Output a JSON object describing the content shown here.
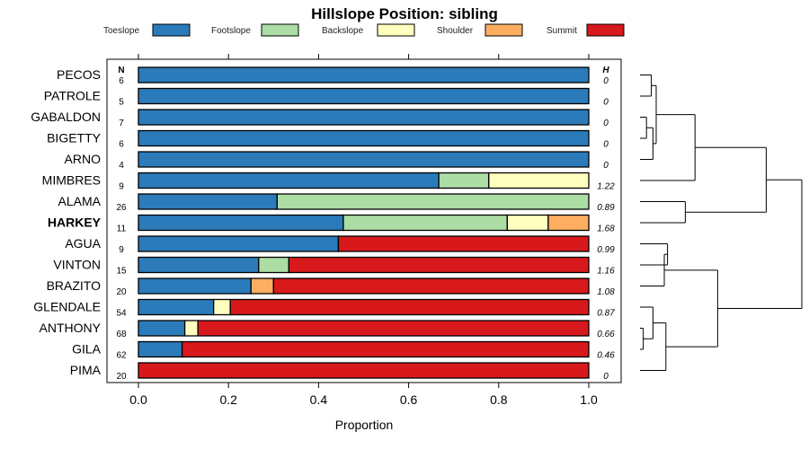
{
  "chart_data": {
    "type": "stacked-bar",
    "title": "Hillslope Position: sibling",
    "xlabel": "Proportion",
    "xlim": [
      0,
      1
    ],
    "xticks": [
      "0.0",
      "0.2",
      "0.4",
      "0.6",
      "0.8",
      "1.0"
    ],
    "n_header": "N",
    "h_header": "H",
    "bold_category": "HARKEY",
    "classes": [
      {
        "name": "Toeslope",
        "color": "#2b7bba"
      },
      {
        "name": "Footslope",
        "color": "#abdda4"
      },
      {
        "name": "Backslope",
        "color": "#ffffbf"
      },
      {
        "name": "Shoulder",
        "color": "#fdae61"
      },
      {
        "name": "Summit",
        "color": "#d7191c"
      }
    ],
    "rows": [
      {
        "name": "PECOS",
        "n": "6",
        "h": "0",
        "values": [
          1.0,
          0,
          0,
          0,
          0
        ]
      },
      {
        "name": "PATROLE",
        "n": "5",
        "h": "0",
        "values": [
          1.0,
          0,
          0,
          0,
          0
        ]
      },
      {
        "name": "GABALDON",
        "n": "7",
        "h": "0",
        "values": [
          1.0,
          0,
          0,
          0,
          0
        ]
      },
      {
        "name": "BIGETTY",
        "n": "6",
        "h": "0",
        "values": [
          1.0,
          0,
          0,
          0,
          0
        ]
      },
      {
        "name": "ARNO",
        "n": "4",
        "h": "0",
        "values": [
          1.0,
          0,
          0,
          0,
          0
        ]
      },
      {
        "name": "MIMBRES",
        "n": "9",
        "h": "1.22",
        "values": [
          0.667,
          0.111,
          0.222,
          0,
          0
        ]
      },
      {
        "name": "ALAMA",
        "n": "26",
        "h": "0.89",
        "values": [
          0.308,
          0.692,
          0,
          0,
          0
        ]
      },
      {
        "name": "HARKEY",
        "n": "11",
        "h": "1.68",
        "values": [
          0.455,
          0.364,
          0.091,
          0.09,
          0
        ]
      },
      {
        "name": "AGUA",
        "n": "9",
        "h": "0.99",
        "values": [
          0.444,
          0,
          0,
          0,
          0.556
        ]
      },
      {
        "name": "VINTON",
        "n": "15",
        "h": "1.16",
        "values": [
          0.267,
          0.067,
          0,
          0,
          0.666
        ]
      },
      {
        "name": "BRAZITO",
        "n": "20",
        "h": "1.08",
        "values": [
          0.25,
          0,
          0,
          0.05,
          0.7
        ]
      },
      {
        "name": "GLENDALE",
        "n": "54",
        "h": "0.87",
        "values": [
          0.167,
          0,
          0.037,
          0,
          0.796
        ]
      },
      {
        "name": "ANTHONY",
        "n": "68",
        "h": "0.66",
        "values": [
          0.103,
          0,
          0.029,
          0,
          0.868
        ]
      },
      {
        "name": "GILA",
        "n": "62",
        "h": "0.46",
        "values": [
          0.097,
          0,
          0,
          0,
          0.903
        ]
      },
      {
        "name": "PIMA",
        "n": "20",
        "h": "0",
        "values": [
          0,
          0,
          0,
          0,
          1.0
        ]
      }
    ],
    "dendrogram": {
      "leaf_order": [
        "PECOS",
        "PATROLE",
        "GABALDON",
        "BIGETTY",
        "ARNO",
        "MIMBRES",
        "ALAMA",
        "HARKEY",
        "AGUA",
        "VINTON",
        "BRAZITO",
        "GLENDALE",
        "ANTHONY",
        "GILA",
        "PIMA"
      ],
      "merges": [
        {
          "a": "GABALDON",
          "b": "BIGETTY",
          "height": 0.04
        },
        {
          "a": "PECOS",
          "b": "PATROLE",
          "height": 0.07
        },
        {
          "a": [
            "GABALDON",
            "BIGETTY"
          ],
          "b": "ARNO",
          "height": 0.08
        },
        {
          "a": [
            "PECOS",
            "PATROLE"
          ],
          "b": [
            "GABALDON",
            "BIGETTY",
            "ARNO"
          ],
          "height": 0.1
        },
        {
          "a": [
            "PECOS",
            "PATROLE",
            "GABALDON",
            "BIGETTY",
            "ARNO"
          ],
          "b": "MIMBRES",
          "height": 0.34
        },
        {
          "a": "ALAMA",
          "b": "HARKEY",
          "height": 0.28
        },
        {
          "a": [
            "PECOS",
            "PATROLE",
            "GABALDON",
            "BIGETTY",
            "ARNO",
            "MIMBRES"
          ],
          "b": [
            "ALAMA",
            "HARKEY"
          ],
          "height": 0.78
        },
        {
          "a": "AGUA",
          "b": "VINTON",
          "height": 0.17
        },
        {
          "a": [
            "AGUA",
            "VINTON"
          ],
          "b": "BRAZITO",
          "height": 0.15
        },
        {
          "a": "ANTHONY",
          "b": "GILA",
          "height": 0.02
        },
        {
          "a": "GLENDALE",
          "b": [
            "ANTHONY",
            "GILA"
          ],
          "height": 0.08
        },
        {
          "a": [
            "GLENDALE",
            "ANTHONY",
            "GILA"
          ],
          "b": "PIMA",
          "height": 0.16
        },
        {
          "a": [
            "AGUA",
            "VINTON",
            "BRAZITO"
          ],
          "b": [
            "GLENDALE",
            "ANTHONY",
            "GILA",
            "PIMA"
          ],
          "height": 0.48
        },
        {
          "a": [
            "PECOS",
            "PATROLE",
            "GABALDON",
            "BIGETTY",
            "ARNO",
            "MIMBRES",
            "ALAMA",
            "HARKEY"
          ],
          "b": [
            "AGUA",
            "VINTON",
            "BRAZITO",
            "GLENDALE",
            "ANTHONY",
            "GILA",
            "PIMA"
          ],
          "height": 1.0
        }
      ]
    }
  }
}
